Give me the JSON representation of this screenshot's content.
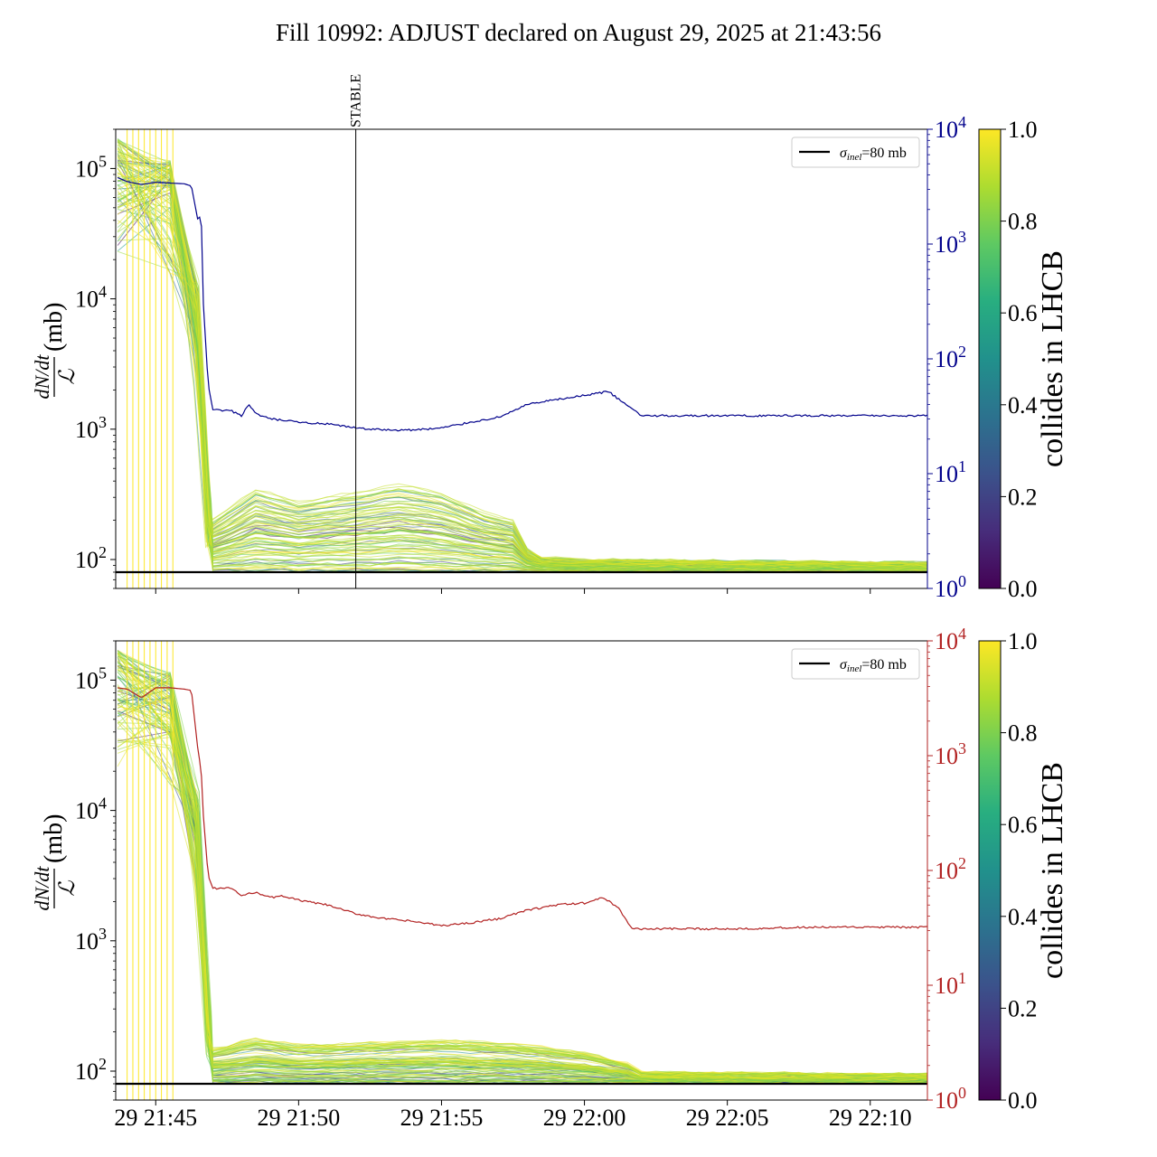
{
  "figure": {
    "title": "Fill 10992: ADJUST declared on August 29, 2025 at 21:43:56"
  },
  "colors": {
    "left_axis": "#000000",
    "top_right_axis": "#00008b",
    "bottom_right_axis": "#b22222",
    "reference_line": "#000000",
    "bunch_trace_high": "#fde725",
    "bunch_trace_low": "#440154"
  },
  "chart_data": [
    {
      "type": "line",
      "panel": "top",
      "y_label_num": "dN/dt",
      "y_label_den": "ℒ",
      "y_label_unit": "(mb)",
      "y_scale": "log",
      "ylim": [
        60,
        200000
      ],
      "y_ticks": [
        {
          "value": 100,
          "base": "10",
          "exp": "2"
        },
        {
          "value": 1000,
          "base": "10",
          "exp": "3"
        },
        {
          "value": 10000,
          "base": "10",
          "exp": "4"
        },
        {
          "value": 100000,
          "base": "10",
          "exp": "5"
        }
      ],
      "x_range": [
        "21:43:36",
        "22:12:00"
      ],
      "x_tick_times": [
        "21:45",
        "21:50",
        "21:55",
        "22:00",
        "22:05",
        "22:10"
      ],
      "x_tick_labels_shown": false,
      "right_axis": {
        "scale": "log",
        "ylim": [
          1,
          10000
        ],
        "ticks": [
          {
            "value": 1,
            "base": "10",
            "exp": "0"
          },
          {
            "value": 10,
            "base": "10",
            "exp": "1"
          },
          {
            "value": 100,
            "base": "10",
            "exp": "2"
          },
          {
            "value": 1000,
            "base": "10",
            "exp": "3"
          },
          {
            "value": 10000,
            "base": "10",
            "exp": "4"
          }
        ]
      },
      "vline": {
        "time": "21:52:00",
        "label": "STABLE"
      },
      "legend": {
        "label_sigma": "σ",
        "label_sub": "inel",
        "label_rest": "=80 mb",
        "position": "upper right"
      },
      "reference_value": 80,
      "right_series": [
        [
          "21:43:40",
          3800
        ],
        [
          "21:44:00",
          3500
        ],
        [
          "21:44:30",
          3300
        ],
        [
          "21:45:00",
          3450
        ],
        [
          "21:45:30",
          3400
        ],
        [
          "21:46:00",
          3350
        ],
        [
          "21:46:15",
          3200
        ],
        [
          "21:46:30",
          1500
        ],
        [
          "21:46:35",
          2100
        ],
        [
          "21:46:40",
          300
        ],
        [
          "21:46:50",
          60
        ],
        [
          "21:47:00",
          36
        ],
        [
          "21:47:40",
          35
        ],
        [
          "21:48:00",
          32
        ],
        [
          "21:48:15",
          40
        ],
        [
          "21:48:30",
          33
        ],
        [
          "21:49:00",
          30
        ],
        [
          "21:49:30",
          29
        ],
        [
          "21:50:00",
          28
        ],
        [
          "21:51:00",
          27
        ],
        [
          "21:52:00",
          25
        ],
        [
          "21:53:00",
          24
        ],
        [
          "21:54:00",
          24
        ],
        [
          "21:55:00",
          25
        ],
        [
          "21:56:00",
          28
        ],
        [
          "21:57:00",
          31
        ],
        [
          "21:58:00",
          40
        ],
        [
          "21:59:00",
          44
        ],
        [
          "22:00:00",
          48
        ],
        [
          "22:00:50",
          52
        ],
        [
          "22:01:20",
          42
        ],
        [
          "22:02:00",
          32
        ],
        [
          "22:05:00",
          32
        ],
        [
          "22:08:00",
          32
        ],
        [
          "22:10:00",
          32
        ],
        [
          "22:12:00",
          32
        ]
      ],
      "colorbar": {
        "label": "collides in LHCB",
        "range": [
          0,
          1
        ],
        "tick_labels": [
          "0.0",
          "0.2",
          "0.4",
          "0.6",
          "0.8",
          "1.0"
        ]
      }
    },
    {
      "type": "line",
      "panel": "bottom",
      "y_label_num": "dN/dt",
      "y_label_den": "ℒ",
      "y_label_unit": "(mb)",
      "y_scale": "log",
      "ylim": [
        60,
        200000
      ],
      "y_ticks": [
        {
          "value": 100,
          "base": "10",
          "exp": "2"
        },
        {
          "value": 1000,
          "base": "10",
          "exp": "3"
        },
        {
          "value": 10000,
          "base": "10",
          "exp": "4"
        },
        {
          "value": 100000,
          "base": "10",
          "exp": "5"
        }
      ],
      "x_range": [
        "21:43:36",
        "22:12:00"
      ],
      "x_ticks": [
        {
          "time": "21:45",
          "label": "29 21:45"
        },
        {
          "time": "21:50",
          "label": "29 21:50"
        },
        {
          "time": "21:55",
          "label": "29 21:55"
        },
        {
          "time": "22:00",
          "label": "29 22:00"
        },
        {
          "time": "22:05",
          "label": "29 22:05"
        },
        {
          "time": "22:10",
          "label": "29 22:10"
        }
      ],
      "right_axis": {
        "scale": "log",
        "ylim": [
          1,
          10000
        ],
        "ticks": [
          {
            "value": 1,
            "base": "10",
            "exp": "0"
          },
          {
            "value": 10,
            "base": "10",
            "exp": "1"
          },
          {
            "value": 100,
            "base": "10",
            "exp": "2"
          },
          {
            "value": 1000,
            "base": "10",
            "exp": "3"
          },
          {
            "value": 10000,
            "base": "10",
            "exp": "4"
          }
        ]
      },
      "legend": {
        "label_sigma": "σ",
        "label_sub": "inel",
        "label_rest": "=80 mb",
        "position": "upper right"
      },
      "reference_value": 80,
      "right_series": [
        [
          "21:43:40",
          3900
        ],
        [
          "21:44:00",
          3800
        ],
        [
          "21:44:30",
          3200
        ],
        [
          "21:45:00",
          3900
        ],
        [
          "21:45:30",
          3900
        ],
        [
          "21:46:00",
          3800
        ],
        [
          "21:46:15",
          3700
        ],
        [
          "21:46:30",
          1000
        ],
        [
          "21:46:35",
          800
        ],
        [
          "21:46:40",
          300
        ],
        [
          "21:46:50",
          90
        ],
        [
          "21:47:00",
          70
        ],
        [
          "21:47:40",
          70
        ],
        [
          "21:48:00",
          60
        ],
        [
          "21:48:30",
          65
        ],
        [
          "21:49:00",
          58
        ],
        [
          "21:49:30",
          60
        ],
        [
          "21:50:00",
          55
        ],
        [
          "21:51:00",
          50
        ],
        [
          "21:52:00",
          42
        ],
        [
          "21:53:00",
          38
        ],
        [
          "21:54:00",
          36
        ],
        [
          "21:55:00",
          33
        ],
        [
          "21:56:00",
          35
        ],
        [
          "21:57:00",
          38
        ],
        [
          "21:58:00",
          45
        ],
        [
          "21:59:00",
          50
        ],
        [
          "22:00:00",
          52
        ],
        [
          "22:00:40",
          58
        ],
        [
          "22:01:10",
          48
        ],
        [
          "22:01:40",
          31
        ],
        [
          "22:05:00",
          31
        ],
        [
          "22:08:00",
          32
        ],
        [
          "22:10:00",
          32
        ],
        [
          "22:12:00",
          32
        ]
      ],
      "colorbar": {
        "label": "collides in LHCB",
        "range": [
          0,
          1
        ],
        "tick_labels": [
          "0.0",
          "0.2",
          "0.4",
          "0.6",
          "0.8",
          "1.0"
        ]
      }
    }
  ]
}
